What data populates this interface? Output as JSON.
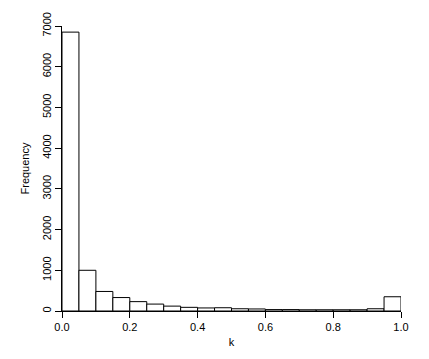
{
  "chart_data": {
    "type": "histogram",
    "x_label": "k",
    "y_label": "Frequency",
    "bins": [
      0,
      0.05,
      0.1,
      0.15,
      0.2,
      0.25,
      0.3,
      0.35,
      0.4,
      0.45,
      0.5,
      0.55,
      0.6,
      0.65,
      0.7,
      0.75,
      0.8,
      0.85,
      0.9,
      0.95,
      1.0
    ],
    "values": [
      6850,
      1000,
      480,
      330,
      230,
      170,
      120,
      90,
      75,
      80,
      55,
      50,
      35,
      35,
      30,
      30,
      30,
      30,
      55,
      350
    ],
    "color": "#ffffff",
    "xlim": [
      0,
      1
    ],
    "xticks": [
      {
        "value": 0,
        "label": "0.0"
      },
      0.2,
      0.4,
      0.6,
      0.8,
      {
        "value": 1,
        "label": "1.0"
      }
    ],
    "ylim": [
      0,
      7000
    ],
    "yticks": [
      0,
      1000,
      2000,
      3000,
      4000,
      5000,
      6000,
      7000
    ],
    "grid": false
  }
}
